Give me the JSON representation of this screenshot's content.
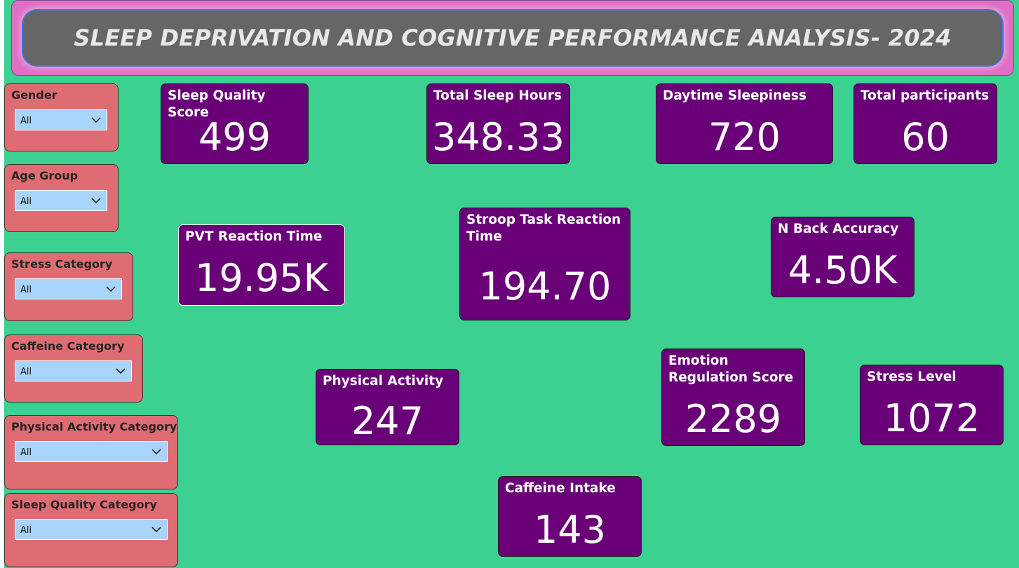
{
  "title": "SLEEP DEPRIVATION AND COGNITIVE PERFORMANCE ANALYSIS- 2024",
  "colors": {
    "background": "#3dd191",
    "title_frame": "#e06ec5",
    "title_panel": "#666666",
    "slicer_bg": "#e06c73",
    "dropdown_bg": "#a8d4fb",
    "card_bg": "#6a0077"
  },
  "slicers": [
    {
      "label": "Gender",
      "value": "All"
    },
    {
      "label": "Age Group",
      "value": "All"
    },
    {
      "label": "Stress Category",
      "value": "All"
    },
    {
      "label": "Caffeine Category",
      "value": "All"
    },
    {
      "label": "Physical Activity Category",
      "value": "All"
    },
    {
      "label": "Sleep Quality Category",
      "value": "All"
    }
  ],
  "cards": {
    "sleep_quality": {
      "label": "Sleep Quality Score",
      "value": "499"
    },
    "sleep_hours": {
      "label": "Total Sleep Hours",
      "value": "348.33"
    },
    "daytime_sleepiness": {
      "label": "Daytime Sleepiness",
      "value": "720"
    },
    "participants": {
      "label": "Total participants",
      "value": "60"
    },
    "pvt": {
      "label": "PVT Reaction Time",
      "value": "19.95K"
    },
    "stroop": {
      "label": "Stroop Task Reaction Time",
      "value": "194.70"
    },
    "nback": {
      "label": "N Back Accuracy",
      "value": "4.50K"
    },
    "physical_activity": {
      "label": "Physical Activity",
      "value": "247"
    },
    "emotion": {
      "label": "Emotion Regulation Score",
      "value": "2289"
    },
    "stress": {
      "label": "Stress Level",
      "value": "1072"
    },
    "caffeine": {
      "label": "Caffeine Intake",
      "value": "143"
    }
  }
}
